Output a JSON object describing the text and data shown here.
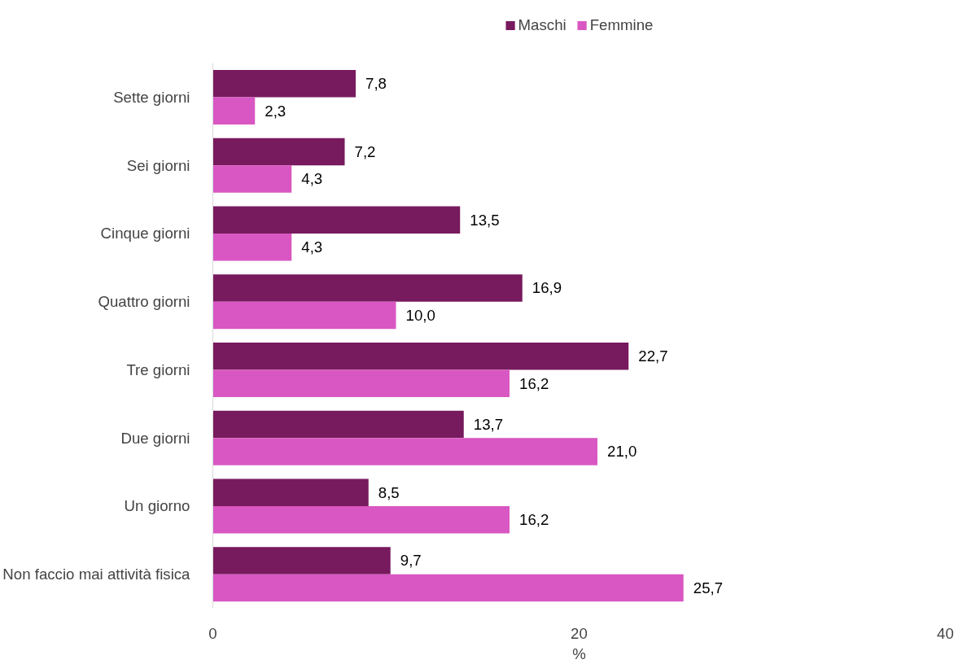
{
  "chart_data": {
    "type": "bar",
    "orientation": "horizontal",
    "xlabel": "%",
    "categories": [
      "Sette giorni",
      "Sei giorni",
      "Cinque giorni",
      "Quattro giorni",
      "Tre giorni",
      "Due giorni",
      "Un giorno",
      "Non faccio mai attività fisica"
    ],
    "series": [
      {
        "name": "Maschi",
        "color": "#781a5e",
        "values": [
          7.8,
          7.2,
          13.5,
          16.9,
          22.7,
          13.7,
          8.5,
          9.7
        ],
        "value_labels": [
          "7,8",
          "7,2",
          "13,5",
          "16,9",
          "22,7",
          "13,7",
          "8,5",
          "9,7"
        ]
      },
      {
        "name": "Femmine",
        "color": "#d957c3",
        "values": [
          2.3,
          4.3,
          4.3,
          10.0,
          16.2,
          21.0,
          16.2,
          25.7
        ],
        "value_labels": [
          "2,3",
          "4,3",
          "4,3",
          "10,0",
          "16,2",
          "21,0",
          "16,2",
          "25,7"
        ]
      }
    ],
    "xlim": [
      0,
      40
    ],
    "xticks": [
      0,
      20,
      40
    ],
    "grid": false,
    "legend": "top"
  }
}
